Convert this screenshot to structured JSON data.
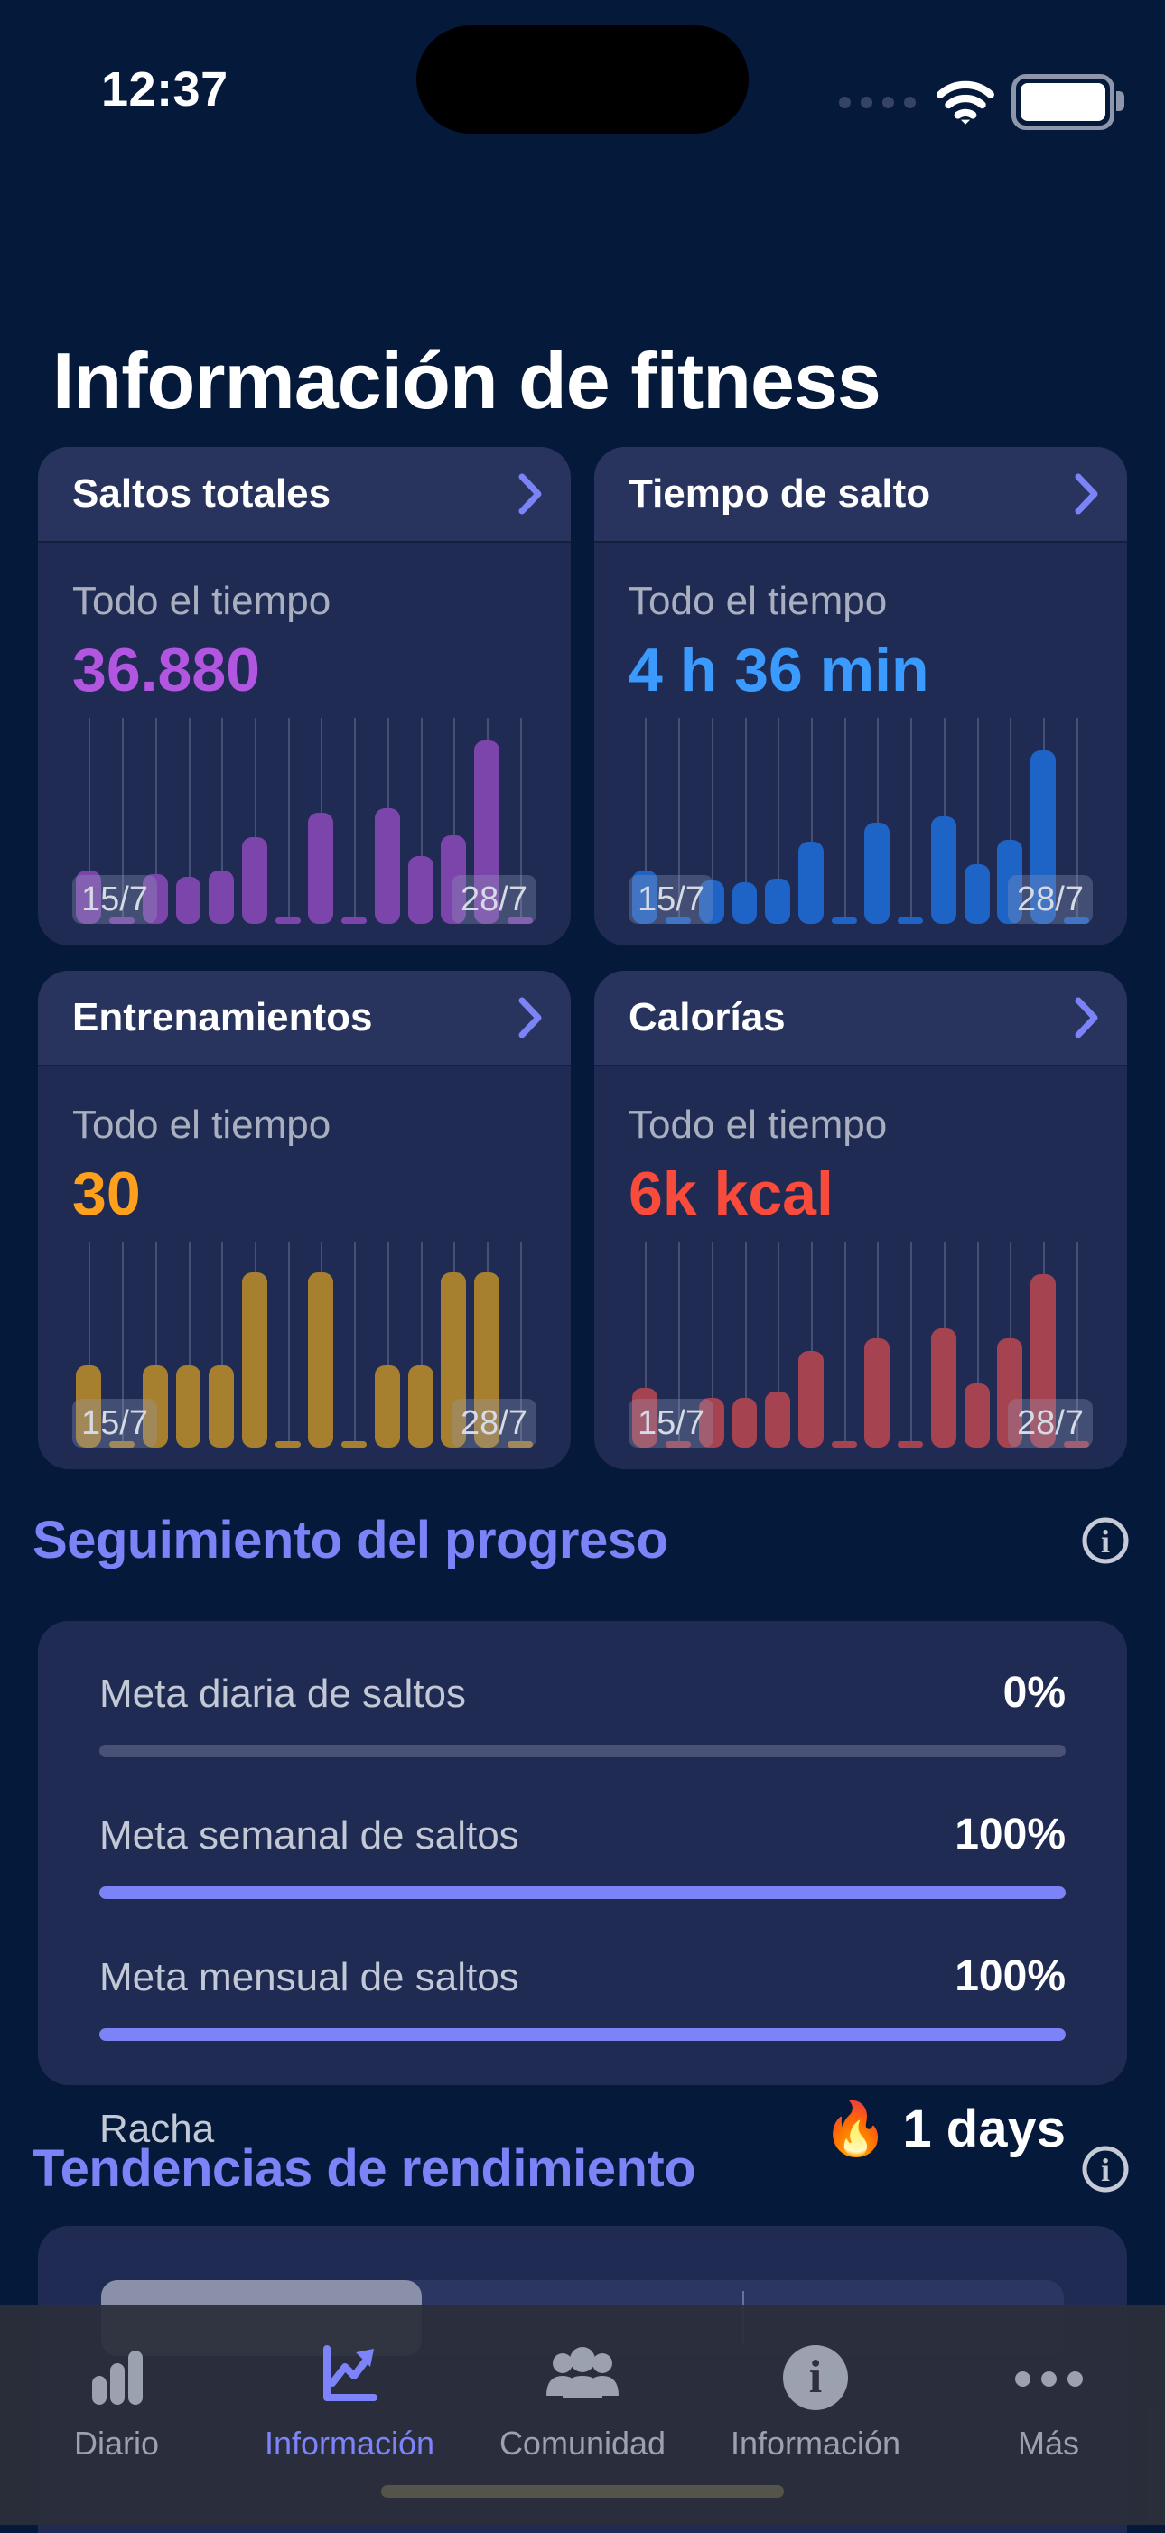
{
  "status_bar": {
    "time": "12:37"
  },
  "page": {
    "title": "Información de fitness"
  },
  "colors": {
    "background": "#05193B",
    "card": "#1F2B53",
    "card_header": "#28345E",
    "accent_periwinkle": "#7C83F7",
    "muted_text": "#A9AFBE",
    "tabbar_bg": "#2C2F3A"
  },
  "cards": [
    {
      "title": "Saltos totales",
      "period": "Todo el tiempo",
      "value": "36.880",
      "value_color": "#B256E2",
      "bar_color": "#7C45AB",
      "start_label": "15/7",
      "end_label": "28/7",
      "bars": [
        0.26,
        0.02,
        0.24,
        0.23,
        0.26,
        0.42,
        0.02,
        0.54,
        0.02,
        0.56,
        0.33,
        0.43,
        0.89,
        0.02
      ]
    },
    {
      "title": "Tiempo de salto",
      "period": "Todo el tiempo",
      "value": "4 h 36 min",
      "value_color": "#3B9AFE",
      "bar_color": "#1D64C6",
      "start_label": "15/7",
      "end_label": "28/7",
      "bars": [
        0.26,
        0.02,
        0.21,
        0.2,
        0.22,
        0.4,
        0.02,
        0.49,
        0.02,
        0.52,
        0.29,
        0.41,
        0.84,
        0.02
      ]
    },
    {
      "title": "Entrenamientos",
      "period": "Todo el tiempo",
      "value": "30",
      "value_color": "#FFA01D",
      "bar_color": "#A67F2F",
      "start_label": "15/7",
      "end_label": "28/7",
      "bars": [
        0.4,
        0.02,
        0.4,
        0.4,
        0.4,
        0.85,
        0.02,
        0.85,
        0.02,
        0.4,
        0.4,
        0.85,
        0.85,
        0.02
      ]
    },
    {
      "title": "Calorías",
      "period": "Todo el tiempo",
      "value": "6k kcal",
      "value_color": "#F84B3B",
      "bar_color": "#A64350",
      "start_label": "15/7",
      "end_label": "28/7",
      "bars": [
        0.29,
        0.02,
        0.24,
        0.24,
        0.27,
        0.47,
        0.02,
        0.53,
        0.02,
        0.58,
        0.31,
        0.53,
        0.84,
        0.02
      ]
    }
  ],
  "progress_section": {
    "title": "Seguimiento del progreso",
    "rows": [
      {
        "label": "Meta diaria de saltos",
        "percent": "0%",
        "fill": 0
      },
      {
        "label": "Meta semanal de saltos",
        "percent": "100%",
        "fill": 100
      },
      {
        "label": "Meta mensual de saltos",
        "percent": "100%",
        "fill": 100
      }
    ],
    "streak": {
      "label": "Racha",
      "emoji": "🔥",
      "value": "1 days"
    }
  },
  "trends_section": {
    "title": "Tendencias de rendimiento"
  },
  "tab_bar": {
    "items": [
      {
        "label": "Diario",
        "icon": "bar-chart-icon",
        "selected": false
      },
      {
        "label": "Información",
        "icon": "line-chart-icon",
        "selected": true
      },
      {
        "label": "Comunidad",
        "icon": "people-icon",
        "selected": false
      },
      {
        "label": "Información",
        "icon": "info-icon",
        "selected": false
      },
      {
        "label": "Más",
        "icon": "ellipsis-icon",
        "selected": false
      }
    ]
  }
}
